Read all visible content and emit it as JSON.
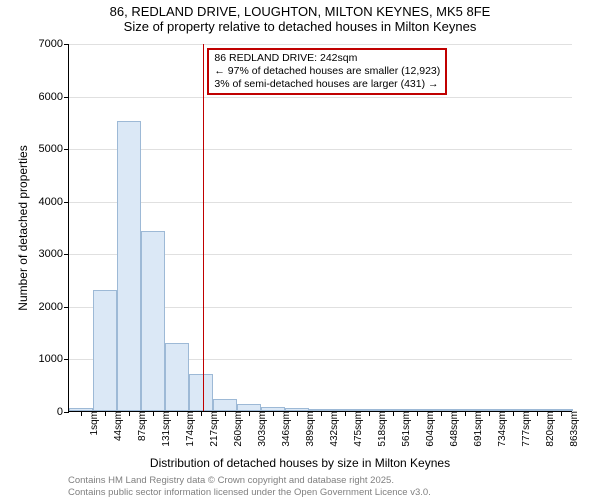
{
  "title": {
    "line1": "86, REDLAND DRIVE, LOUGHTON, MILTON KEYNES, MK5 8FE",
    "line2": "Size of property relative to detached houses in Milton Keynes"
  },
  "chart": {
    "type": "histogram",
    "categories": [
      "1sqm",
      "44sqm",
      "87sqm",
      "131sqm",
      "174sqm",
      "217sqm",
      "260sqm",
      "303sqm",
      "346sqm",
      "389sqm",
      "432sqm",
      "475sqm",
      "518sqm",
      "561sqm",
      "604sqm",
      "648sqm",
      "691sqm",
      "734sqm",
      "777sqm",
      "820sqm",
      "863sqm"
    ],
    "values": [
      50,
      2300,
      5520,
      3420,
      1300,
      700,
      230,
      130,
      70,
      50,
      25,
      20,
      15,
      12,
      10,
      8,
      7,
      5,
      4,
      3,
      3
    ],
    "bar_fill": "#dbe8f6",
    "bar_border": "#9db9d6",
    "ylim": [
      0,
      7000
    ],
    "yticks": [
      0,
      1000,
      2000,
      3000,
      4000,
      5000,
      6000,
      7000
    ],
    "ylabel": "Number of detached properties",
    "xlabel": "Distribution of detached houses by size in Milton Keynes",
    "grid_color": "#e0e0e0",
    "background_color": "#ffffff",
    "label_fontsize": 12,
    "tick_fontsize": 11,
    "bar_width_ratio": 1.0
  },
  "marker": {
    "index_position": 5.6,
    "color": "#c00000"
  },
  "annotation": {
    "line1": "86 REDLAND DRIVE: 242sqm",
    "line2": "← 97% of detached houses are smaller (12,923)",
    "line3": "3% of semi-detached houses are larger (431) →",
    "border_color": "#c00000",
    "background_color": "#ffffff",
    "fontsize": 10.5
  },
  "attribution": {
    "line1": "Contains HM Land Registry data © Crown copyright and database right 2025.",
    "line2": "Contains public sector information licensed under the Open Government Licence v3.0.",
    "color": "#808080",
    "fontsize": 9.5
  }
}
